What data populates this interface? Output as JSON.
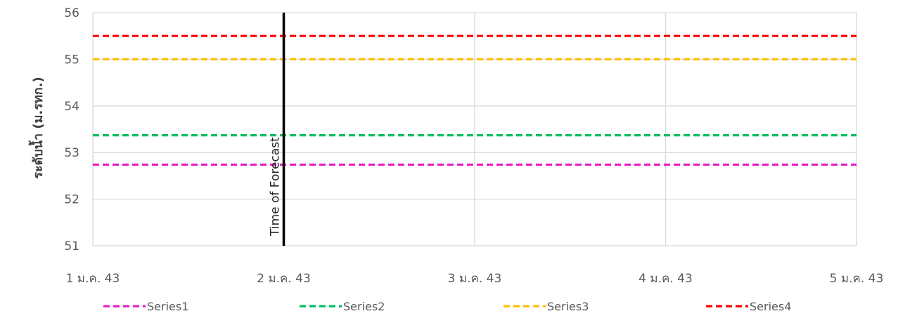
{
  "chart_data": {
    "type": "line",
    "title": "",
    "xlabel": "",
    "ylabel": "ระดับน้ำ (ม.รทก.)",
    "x_categories": [
      "1 ม.ค. 43",
      "2 ม.ค. 43",
      "3 ม.ค. 43",
      "4 ม.ค. 43",
      "5 ม.ค. 43"
    ],
    "ylim": [
      51,
      56
    ],
    "yticks": [
      "51",
      "52",
      "53",
      "54",
      "55",
      "56"
    ],
    "grid": true,
    "legend_position": "bottom",
    "series": [
      {
        "name": "Series1",
        "color": "#e61fc8",
        "style": "dashed",
        "x": [
          "1 ม.ค. 43",
          "5 ม.ค. 43"
        ],
        "values": [
          52.74,
          52.74
        ]
      },
      {
        "name": "Series2",
        "color": "#00c060",
        "style": "dashed",
        "x": [
          "1 ม.ค. 43",
          "5 ม.ค. 43"
        ],
        "values": [
          53.37,
          53.37
        ]
      },
      {
        "name": "Series3",
        "color": "#ffc000",
        "style": "dashed",
        "x": [
          "1 ม.ค. 43",
          "5 ม.ค. 43"
        ],
        "values": [
          55.0,
          55.0
        ]
      },
      {
        "name": "Series4",
        "color": "#ff0000",
        "style": "dashed",
        "x": [
          "1 ม.ค. 43",
          "5 ม.ค. 43"
        ],
        "values": [
          55.5,
          55.5
        ]
      }
    ],
    "vertical_marker": {
      "x": "2 ม.ค. 43",
      "label": "Time of Forecast",
      "color": "#000000"
    }
  }
}
